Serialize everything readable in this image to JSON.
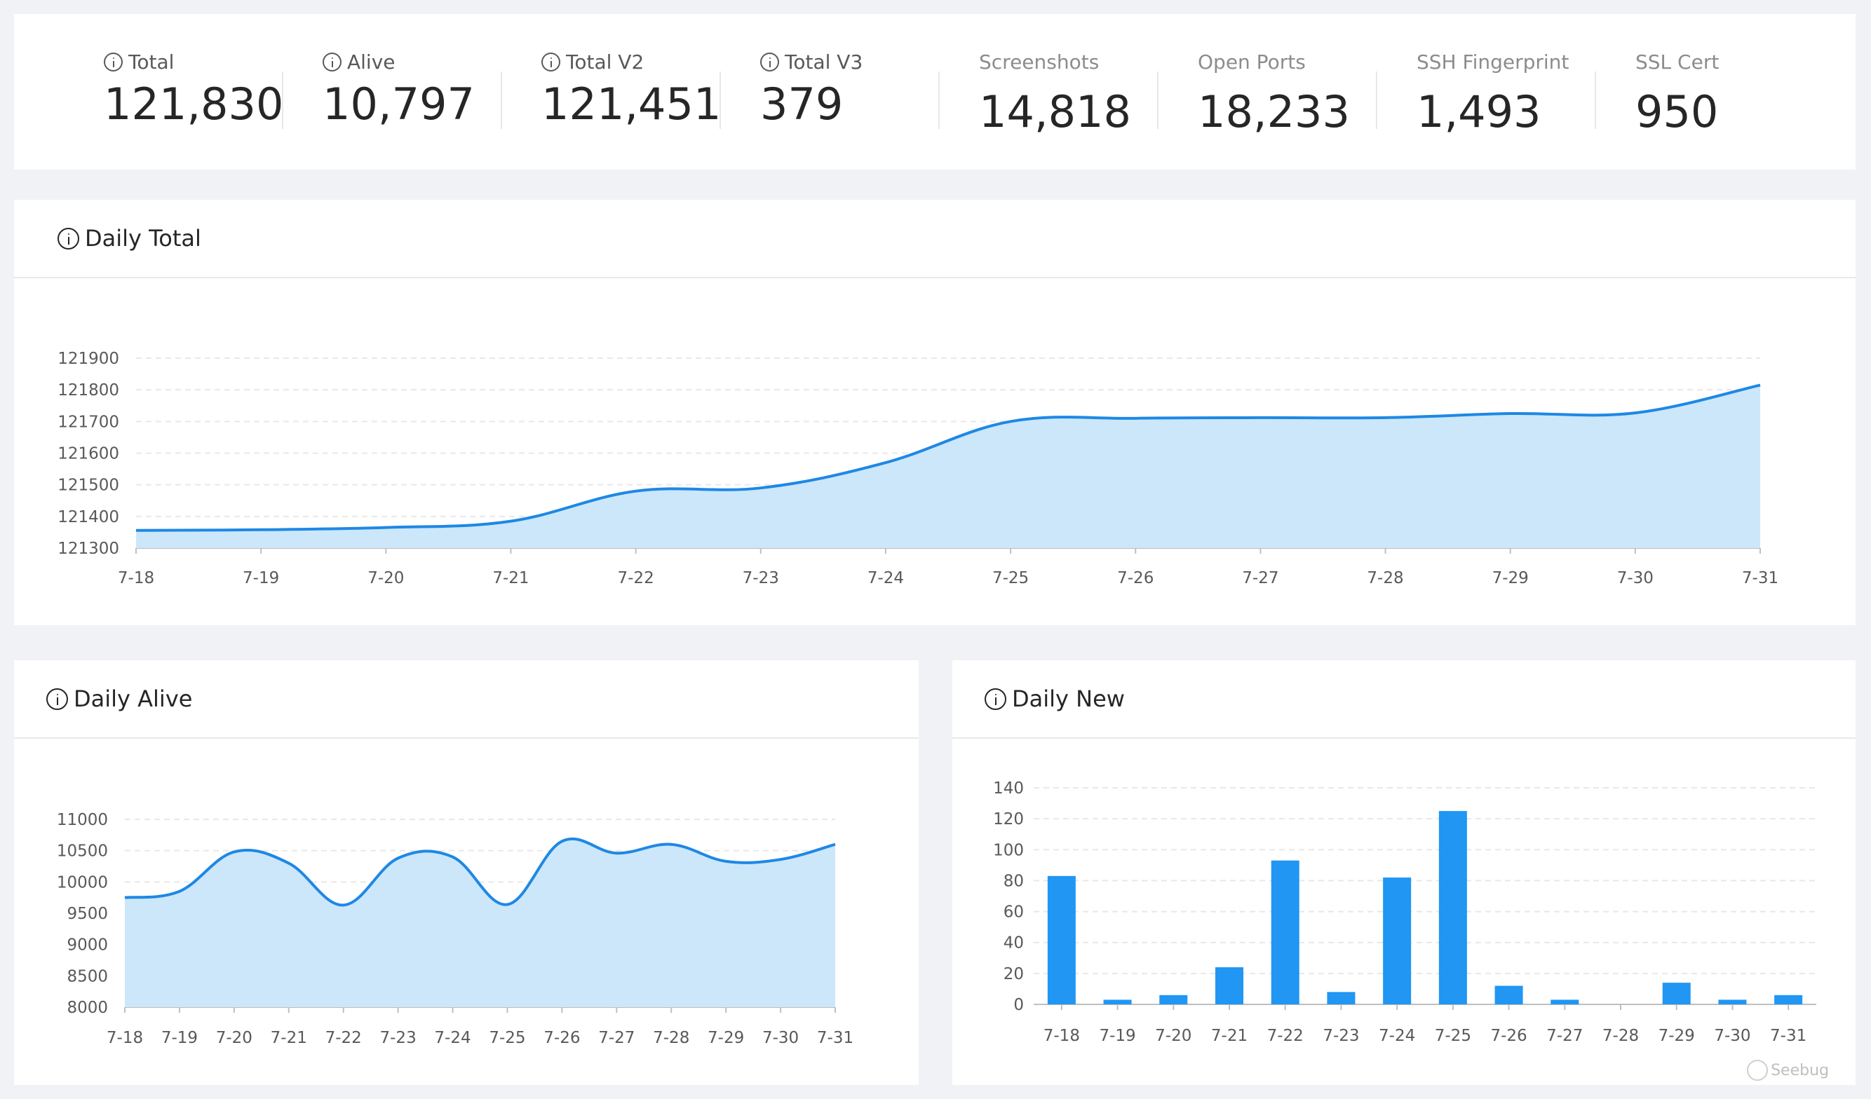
{
  "stats": [
    {
      "label": "Total",
      "value": "121,830",
      "has_icon": true
    },
    {
      "label": "Alive",
      "value": "10,797",
      "has_icon": true
    },
    {
      "label": "Total V2",
      "value": "121,451",
      "has_icon": true
    },
    {
      "label": "Total V3",
      "value": "379",
      "has_icon": true
    },
    {
      "label": "Screenshots",
      "value": "14,818",
      "has_icon": false
    },
    {
      "label": "Open Ports",
      "value": "18,233",
      "has_icon": false
    },
    {
      "label": "SSH Fingerprint",
      "value": "1,493",
      "has_icon": false
    },
    {
      "label": "SSL Cert",
      "value": "950",
      "has_icon": false
    }
  ],
  "panels": {
    "daily_total": {
      "title": "Daily Total",
      "icon": "info-icon"
    },
    "daily_alive": {
      "title": "Daily Alive",
      "icon": "info-icon"
    },
    "daily_new": {
      "title": "Daily New",
      "icon": "info-icon"
    }
  },
  "watermark": "Seebug",
  "colors": {
    "line": "#1e88e5",
    "area": "#cce7fa",
    "bar": "#2196f3",
    "grid": "#e8e8e8"
  },
  "chart_data": [
    {
      "id": "daily_total",
      "type": "area",
      "categories": [
        "7-18",
        "7-19",
        "7-20",
        "7-21",
        "7-22",
        "7-23",
        "7-24",
        "7-25",
        "7-26",
        "7-27",
        "7-28",
        "7-29",
        "7-30",
        "7-31"
      ],
      "values": [
        121356,
        121358,
        121365,
        121385,
        121480,
        121490,
        121570,
        121700,
        121710,
        121712,
        121712,
        121725,
        121727,
        121815
      ],
      "yticks": [
        "121300",
        "121400",
        "121500",
        "121600",
        "121700",
        "121800",
        "121900"
      ],
      "ylim": [
        121300,
        121900
      ],
      "grid": true
    },
    {
      "id": "daily_alive",
      "type": "area",
      "categories": [
        "7-18",
        "7-19",
        "7-20",
        "7-21",
        "7-22",
        "7-23",
        "7-24",
        "7-25",
        "7-26",
        "7-27",
        "7-28",
        "7-29",
        "7-30",
        "7-31"
      ],
      "values": [
        9750,
        9850,
        10480,
        10300,
        9630,
        10380,
        10400,
        9640,
        10650,
        10460,
        10600,
        10330,
        10360,
        10600
      ],
      "yticks": [
        "8000",
        "8500",
        "9000",
        "9500",
        "10000",
        "10500",
        "11000"
      ],
      "ylim": [
        8000,
        11000
      ],
      "grid": true
    },
    {
      "id": "daily_new",
      "type": "bar",
      "categories": [
        "7-18",
        "7-19",
        "7-20",
        "7-21",
        "7-22",
        "7-23",
        "7-24",
        "7-25",
        "7-26",
        "7-27",
        "7-28",
        "7-29",
        "7-30",
        "7-31"
      ],
      "values": [
        83,
        3,
        6,
        24,
        93,
        8,
        82,
        125,
        12,
        3,
        0,
        14,
        3,
        6
      ],
      "yticks": [
        "0",
        "20",
        "40",
        "60",
        "80",
        "100",
        "120",
        "140"
      ],
      "ylim": [
        0,
        140
      ],
      "grid": true
    }
  ]
}
